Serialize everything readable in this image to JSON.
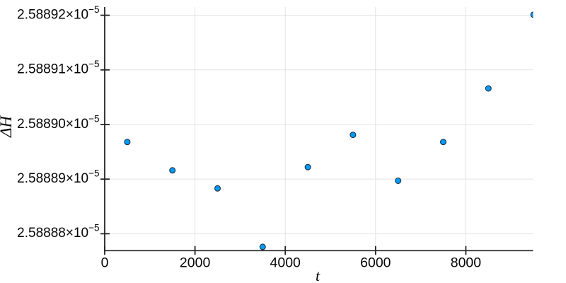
{
  "figure": {
    "background": "#ffffff"
  },
  "chart_data": {
    "type": "scatter",
    "title": "",
    "xlabel": "t",
    "ylabel": "ΔH",
    "legend": "none",
    "grid": true,
    "x": [
      500,
      1500,
      2500,
      3500,
      4500,
      5500,
      6500,
      7500,
      8500,
      9500
    ],
    "y": [
      2.5888968e-05,
      2.5888916e-05,
      2.5888883e-05,
      2.5888776e-05,
      2.5888922e-05,
      2.5888981e-05,
      2.5888897e-05,
      2.5888968e-05,
      2.5889066e-05,
      2.5889201e-05
    ],
    "xlim": [
      0,
      9490
    ],
    "ylim": [
      2.5888769e-05,
      2.5889215e-05
    ],
    "xticks": [
      0,
      2000,
      4000,
      6000,
      8000
    ],
    "xtick_labels": [
      "0",
      "2000",
      "4000",
      "6000",
      "8000"
    ],
    "yticks": [
      2.58888e-05,
      2.58889e-05,
      2.5889e-05,
      2.58891e-05,
      2.58892e-05
    ],
    "ytick_mantissas": [
      "2.58888",
      "2.58889",
      "2.58890",
      "2.58891",
      "2.58892"
    ],
    "ytick_multiplier": "×10",
    "ytick_exponent": "−5",
    "marker": {
      "shape": "circle",
      "radius_px": 4,
      "fill": "#009af9",
      "stroke": "#0a0a0a"
    }
  },
  "style": {
    "grid_color": "#e3e3e3",
    "axis_color": "#222222",
    "text_color": "#060606"
  }
}
